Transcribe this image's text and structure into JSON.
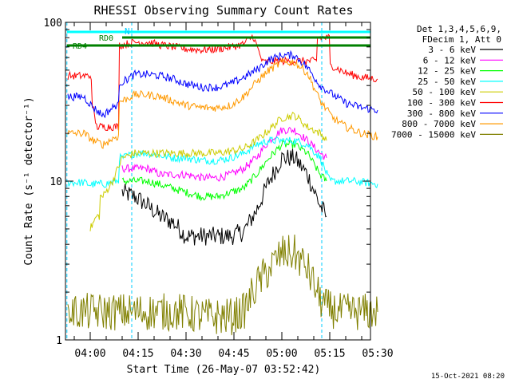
{
  "chart_data": {
    "type": "line",
    "title": "RHESSI Observing Summary Count Rates",
    "xlabel": "Start Time (26-May-07 03:52:42)",
    "ylabel": "Count Rate (s⁻¹ detector⁻¹)",
    "yscale": "log",
    "ylim": [
      1,
      100
    ],
    "xlim": [
      "03:52:42",
      "05:31:00"
    ],
    "x_tick_labels": [
      "04:00",
      "04:15",
      "04:30",
      "04:45",
      "05:00",
      "05:15",
      "05:30"
    ],
    "y_tick_labels": [
      "1",
      "10",
      "100"
    ],
    "legend_header": [
      "Det 1,3,4,5,6,9,",
      "FDecim 1, Att 0"
    ],
    "footer_date": "15-Oct-2021 08:20",
    "bar_labels": {
      "n": "N",
      "rd0": "RD0",
      "rd4": "RD4"
    },
    "markers": {
      "night_intervals": [
        [
          "03:52:42",
          "04:13:00"
        ],
        [
          "05:12:30",
          "05:31:00"
        ]
      ],
      "N_bar": [
        "03:52:42",
        "05:31:00"
      ],
      "RD0_bar": [
        "04:10:00",
        "05:31:00"
      ],
      "RD4_bar": [
        "03:52:42",
        "05:31:00"
      ]
    },
    "series": [
      {
        "name": "3 - 6 keV",
        "color": "#000000",
        "x": [
          "04:10",
          "04:14",
          "04:18",
          "04:22",
          "04:26",
          "04:30",
          "04:35",
          "04:40",
          "04:44",
          "04:48",
          "04:52",
          "04:56",
          "05:00",
          "05:04",
          "05:08",
          "05:12",
          "05:14"
        ],
        "values": [
          8.5,
          8,
          7,
          6,
          5.5,
          4.5,
          4.5,
          4.5,
          4.5,
          4.8,
          6.5,
          10,
          14,
          14,
          11,
          7,
          6
        ]
      },
      {
        "name": "6 - 12 keV",
        "color": "#ff00ff",
        "x": [
          "04:10",
          "04:14",
          "04:18",
          "04:22",
          "04:26",
          "04:30",
          "04:35",
          "04:40",
          "04:44",
          "04:48",
          "04:52",
          "04:56",
          "05:00",
          "05:04",
          "05:08",
          "05:12",
          "05:14"
        ],
        "values": [
          12,
          12,
          12,
          11,
          11,
          11,
          10.5,
          10.5,
          11,
          12,
          14,
          18,
          21,
          21,
          18,
          15,
          14
        ]
      },
      {
        "name": "12 - 25 keV",
        "color": "#00ff00",
        "x": [
          "04:10",
          "04:14",
          "04:18",
          "04:22",
          "04:26",
          "04:30",
          "04:35",
          "04:40",
          "04:44",
          "04:48",
          "04:52",
          "04:56",
          "05:00",
          "05:04",
          "05:08",
          "05:12",
          "05:14"
        ],
        "values": [
          10,
          10,
          10,
          9.5,
          9,
          8.5,
          8,
          8,
          8.5,
          9,
          11,
          14,
          17,
          17,
          15,
          11,
          10
        ]
      },
      {
        "name": "25 - 50 keV",
        "color": "#00ffff",
        "x": [
          "03:53",
          "03:58",
          "04:00",
          "04:02",
          "04:05",
          "04:08",
          "04:10",
          "04:14",
          "04:18",
          "04:22",
          "04:26",
          "04:30",
          "04:35",
          "04:40",
          "04:44",
          "04:48",
          "04:52",
          "04:56",
          "05:00",
          "05:04",
          "05:08",
          "05:12",
          "05:15",
          "05:18",
          "05:22",
          "05:26",
          "05:30"
        ],
        "values": [
          9.8,
          9.8,
          9.5,
          9.6,
          9.6,
          10,
          14,
          15,
          15,
          14.5,
          14,
          14,
          13.5,
          13.5,
          14,
          15,
          17,
          18,
          18,
          18,
          17,
          14,
          10,
          10,
          10,
          9.8,
          9.6
        ]
      },
      {
        "name": "50 - 100 keV",
        "color": "#cccc00",
        "x": [
          "04:00",
          "04:02",
          "04:04",
          "04:07",
          "04:10",
          "04:14",
          "04:20",
          "04:30",
          "04:40",
          "04:48",
          "04:52",
          "04:56",
          "05:00",
          "05:04",
          "05:08",
          "05:12",
          "05:14"
        ],
        "values": [
          5,
          6,
          8,
          10,
          14,
          15,
          15,
          15,
          15,
          16,
          18,
          21,
          25,
          26,
          22,
          20,
          18
        ]
      },
      {
        "name": "100 - 300 keV",
        "color": "#ff0000",
        "x": [
          "03:53",
          "03:57",
          "04:00",
          "04:01",
          "04:02",
          "04:04",
          "04:06",
          "04:08",
          "04:10",
          "04:14",
          "04:18",
          "04:22",
          "04:26",
          "04:30",
          "04:35",
          "04:40",
          "04:44",
          "04:48",
          "04:51",
          "04:54",
          "04:58",
          "05:02",
          "05:06",
          "05:10",
          "05:12",
          "05:14",
          "05:16",
          "05:20",
          "05:25",
          "05:30"
        ],
        "values": [
          46,
          46,
          46,
          28,
          22,
          22,
          22,
          22,
          72,
          75,
          75,
          72,
          70,
          68,
          67,
          68,
          70,
          73,
          82,
          56,
          57,
          57,
          57,
          57,
          80,
          80,
          53,
          48,
          45,
          44
        ]
      },
      {
        "name": "300 - 800 keV",
        "color": "#0000ff",
        "x": [
          "03:53",
          "03:58",
          "04:01",
          "04:04",
          "04:08",
          "04:10",
          "04:14",
          "04:18",
          "04:22",
          "04:26",
          "04:30",
          "04:35",
          "04:40",
          "04:44",
          "04:48",
          "04:52",
          "04:56",
          "05:00",
          "05:04",
          "05:08",
          "05:12",
          "05:16",
          "05:20",
          "05:25",
          "05:30"
        ],
        "values": [
          34,
          34,
          29,
          26,
          30,
          42,
          47,
          47,
          46,
          44,
          41,
          39,
          39,
          41,
          45,
          50,
          58,
          62,
          62,
          52,
          40,
          35,
          31,
          29,
          28
        ]
      },
      {
        "name": "800 - 7000 keV",
        "color": "#ff9900",
        "x": [
          "03:53",
          "03:58",
          "04:01",
          "04:04",
          "04:08",
          "04:10",
          "04:14",
          "04:18",
          "04:22",
          "04:26",
          "04:30",
          "04:35",
          "04:40",
          "04:44",
          "04:48",
          "04:52",
          "04:56",
          "05:00",
          "05:04",
          "05:08",
          "05:12",
          "05:16",
          "05:20",
          "05:25",
          "05:30"
        ],
        "values": [
          20,
          20,
          18,
          17,
          19,
          32,
          35,
          35,
          34,
          32,
          30,
          29,
          29,
          30,
          34,
          42,
          50,
          56,
          56,
          48,
          32,
          25,
          22,
          20,
          19
        ]
      },
      {
        "name": "7000 - 15000 keV",
        "color": "#808000",
        "x": [
          "03:53",
          "04:00",
          "04:08",
          "04:12",
          "04:16",
          "04:20",
          "04:24",
          "04:28",
          "04:36",
          "04:44",
          "04:48",
          "04:52",
          "04:56",
          "05:00",
          "05:04",
          "05:08",
          "05:12",
          "05:14",
          "05:18",
          "05:24",
          "05:30"
        ],
        "values": [
          1.5,
          1.5,
          1.5,
          1.5,
          1.5,
          1.5,
          1.5,
          1.5,
          1.4,
          1.4,
          1.5,
          2.2,
          2.8,
          3.5,
          3.5,
          2.8,
          1.8,
          1.6,
          1.5,
          1.5,
          1.5
        ]
      }
    ]
  }
}
